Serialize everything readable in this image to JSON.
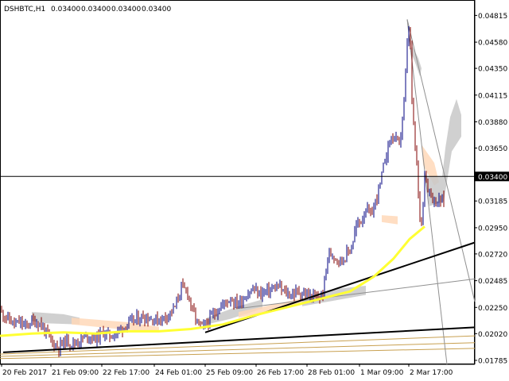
{
  "header": {
    "symbol": "DSHBTC,H1",
    "open": "0.03400",
    "high": "0.03400",
    "low": "0.03400",
    "close": "0.03400"
  },
  "colors": {
    "background": "#ffffff",
    "grid": "#c0c0c0",
    "bull_candle": "#000080",
    "bear_candle": "#800000",
    "ma_line": "#ffff33",
    "trend_line": "#000000",
    "fib_fan": "#c8a050",
    "cloud_gray": "#c8c8c8",
    "cloud_peach": "#ffd8b8",
    "bid_line": "#000000"
  },
  "chart_data": {
    "type": "candlestick",
    "title": "DSHBTC,H1",
    "ylim": [
      0.0175,
      0.0495
    ],
    "y_ticks": [
      "0.04815",
      "0.04580",
      "0.04350",
      "0.04115",
      "0.03880",
      "0.03650",
      "0.03400",
      "0.03185",
      "0.02950",
      "0.02720",
      "0.02485",
      "0.02250",
      "0.02020",
      "0.01785"
    ],
    "current_price": "0.03400",
    "x_ticks": [
      "20 Feb 2017",
      "21 Feb 09:00",
      "22 Feb 17:00",
      "24 Feb 01:00",
      "25 Feb 09:00",
      "26 Feb 17:00",
      "28 Feb 01:00",
      "1 Mar 09:00",
      "2 Mar 17:00"
    ],
    "close_path": [
      [
        0,
        0.0222
      ],
      [
        10,
        0.0215
      ],
      [
        18,
        0.021
      ],
      [
        25,
        0.0212
      ],
      [
        32,
        0.0208
      ],
      [
        40,
        0.0213
      ],
      [
        50,
        0.0211
      ],
      [
        58,
        0.0203
      ],
      [
        66,
        0.0194
      ],
      [
        74,
        0.019
      ],
      [
        82,
        0.0196
      ],
      [
        92,
        0.0193
      ],
      [
        100,
        0.0196
      ],
      [
        110,
        0.02
      ],
      [
        120,
        0.0198
      ],
      [
        130,
        0.0203
      ],
      [
        140,
        0.02
      ],
      [
        150,
        0.0205
      ],
      [
        160,
        0.021
      ],
      [
        170,
        0.0214
      ],
      [
        180,
        0.0217
      ],
      [
        190,
        0.0215
      ],
      [
        200,
        0.0214
      ],
      [
        210,
        0.0218
      ],
      [
        220,
        0.0225
      ],
      [
        228,
        0.0243
      ],
      [
        236,
        0.0238
      ],
      [
        242,
        0.0222
      ],
      [
        248,
        0.0212
      ],
      [
        254,
        0.0207
      ],
      [
        260,
        0.0211
      ],
      [
        266,
        0.0217
      ],
      [
        272,
        0.0222
      ],
      [
        278,
        0.0226
      ],
      [
        284,
        0.023
      ],
      [
        290,
        0.0233
      ],
      [
        296,
        0.0229
      ],
      [
        302,
        0.023
      ],
      [
        310,
        0.0236
      ],
      [
        318,
        0.0241
      ],
      [
        326,
        0.0237
      ],
      [
        334,
        0.0239
      ],
      [
        342,
        0.0241
      ],
      [
        350,
        0.0243
      ],
      [
        358,
        0.0238
      ],
      [
        366,
        0.0236
      ],
      [
        374,
        0.0239
      ],
      [
        382,
        0.0237
      ],
      [
        390,
        0.0235
      ],
      [
        398,
        0.0233
      ],
      [
        406,
        0.0236
      ],
      [
        412,
        0.027
      ],
      [
        418,
        0.0272
      ],
      [
        424,
        0.0268
      ],
      [
        430,
        0.0266
      ],
      [
        436,
        0.0272
      ],
      [
        442,
        0.0278
      ],
      [
        448,
        0.0297
      ],
      [
        454,
        0.0301
      ],
      [
        460,
        0.0312
      ],
      [
        466,
        0.0305
      ],
      [
        472,
        0.0318
      ],
      [
        478,
        0.0333
      ],
      [
        484,
        0.0355
      ],
      [
        490,
        0.0372
      ],
      [
        496,
        0.0375
      ],
      [
        502,
        0.0366
      ],
      [
        508,
        0.0405
      ],
      [
        512,
        0.0455
      ],
      [
        515,
        0.0478
      ],
      [
        518,
        0.0405
      ],
      [
        521,
        0.0373
      ],
      [
        524,
        0.035
      ],
      [
        527,
        0.031
      ],
      [
        530,
        0.0299
      ],
      [
        534,
        0.0343
      ],
      [
        538,
        0.033
      ],
      [
        542,
        0.0325
      ],
      [
        546,
        0.0318
      ],
      [
        552,
        0.0318
      ],
      [
        558,
        0.032
      ]
    ],
    "ma": [
      [
        0,
        0.02
      ],
      [
        40,
        0.0202
      ],
      [
        80,
        0.0203
      ],
      [
        120,
        0.0202
      ],
      [
        160,
        0.0204
      ],
      [
        200,
        0.0204
      ],
      [
        240,
        0.0206
      ],
      [
        280,
        0.021
      ],
      [
        320,
        0.0218
      ],
      [
        360,
        0.0225
      ],
      [
        400,
        0.0232
      ],
      [
        440,
        0.0239
      ],
      [
        470,
        0.0252
      ],
      [
        495,
        0.0268
      ],
      [
        515,
        0.0285
      ],
      [
        534,
        0.0296
      ]
    ]
  }
}
